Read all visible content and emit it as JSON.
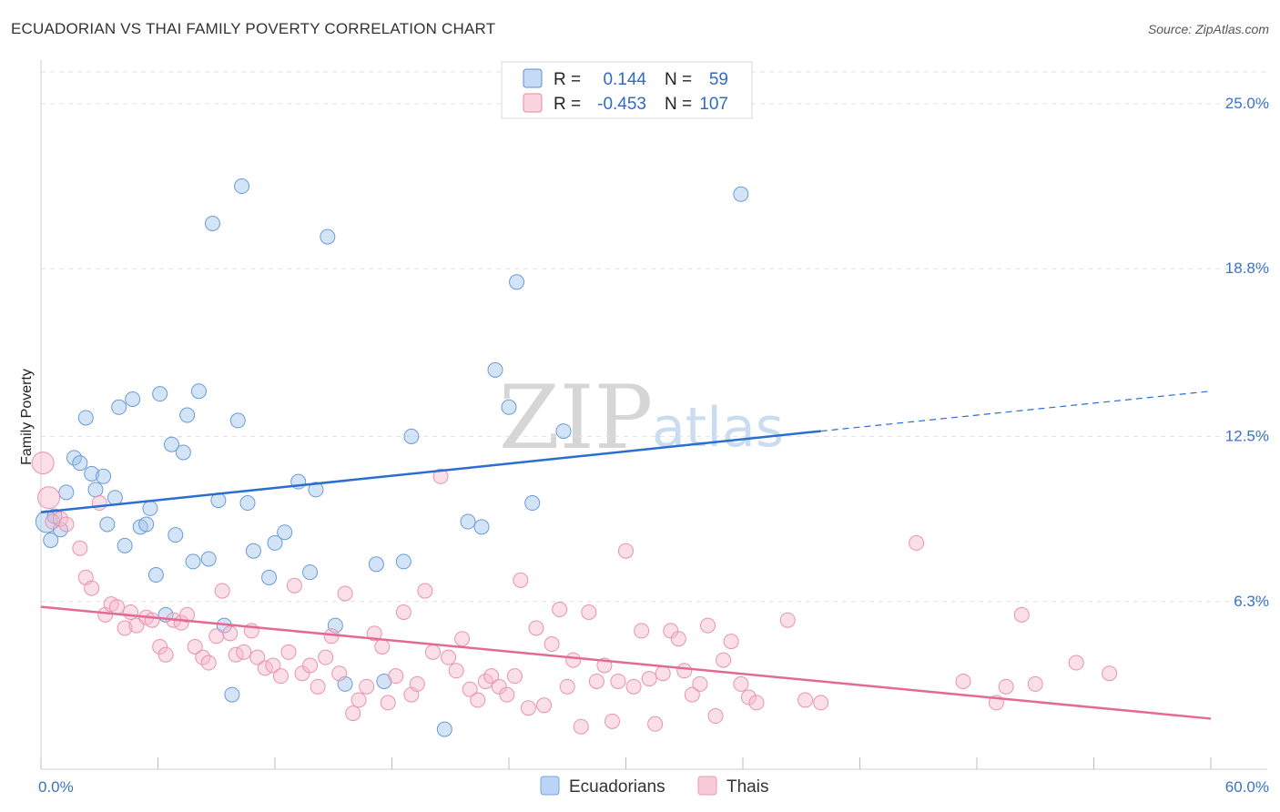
{
  "header": {
    "title": "ECUADORIAN VS THAI FAMILY POVERTY CORRELATION CHART",
    "source": "Source: ZipAtlas.com"
  },
  "watermark": {
    "part1": "ZIP",
    "part2": "atlas"
  },
  "legend_top": [
    {
      "r_label": "R =",
      "r_value": "0.144",
      "n_label": "N =",
      "n_value": "59",
      "color": "#9ec3ee",
      "stroke": "#5f8fd0"
    },
    {
      "r_label": "R =",
      "r_value": "-0.453",
      "n_label": "N =",
      "n_value": "107",
      "color": "#f6b9cb",
      "stroke": "#e58aa6"
    }
  ],
  "legend_bottom": [
    {
      "label": "Ecuadorians",
      "color": "#b9d4f4",
      "stroke": "#7ba4dc"
    },
    {
      "label": "Thais",
      "color": "#f8cbd8",
      "stroke": "#e99ab2"
    }
  ],
  "chart_data": {
    "type": "scatter",
    "title": "ECUADORIAN VS THAI FAMILY POVERTY CORRELATION CHART",
    "xlabel": "",
    "ylabel": "Family Poverty",
    "xlim": [
      0,
      60
    ],
    "ylim": [
      0,
      26.5
    ],
    "x_tick_labels": [
      "0.0%",
      "60.0%"
    ],
    "y_ticks": [
      6.3,
      12.5,
      18.8,
      25.0
    ],
    "y_tick_labels": [
      "6.3%",
      "12.5%",
      "18.8%",
      "25.0%"
    ],
    "grid": true,
    "series": [
      {
        "name": "Ecuadorians",
        "color": "#9ec3ee",
        "stroke": "#6b9ad8",
        "trend": {
          "x0": 0,
          "y0": 9.65,
          "x1": 40,
          "y1": 12.7,
          "dash_to": 60,
          "dash_y": 14.2,
          "color": "#2a6fce"
        },
        "points": [
          [
            0.3,
            9.3,
            2
          ],
          [
            0.5,
            8.6,
            1
          ],
          [
            0.7,
            9.5,
            1
          ],
          [
            1.0,
            9.0,
            1
          ],
          [
            1.3,
            10.4,
            1
          ],
          [
            1.7,
            11.7,
            1
          ],
          [
            2.0,
            11.5,
            1
          ],
          [
            2.3,
            13.2,
            1
          ],
          [
            2.6,
            11.1,
            1
          ],
          [
            2.8,
            10.5,
            1
          ],
          [
            3.2,
            11.0,
            1
          ],
          [
            3.4,
            9.2,
            1
          ],
          [
            3.8,
            10.2,
            1
          ],
          [
            4.0,
            13.6,
            1
          ],
          [
            4.3,
            8.4,
            1
          ],
          [
            4.7,
            13.9,
            1
          ],
          [
            5.1,
            9.1,
            1
          ],
          [
            5.4,
            9.2,
            1
          ],
          [
            5.6,
            9.8,
            1
          ],
          [
            5.9,
            7.3,
            1
          ],
          [
            6.1,
            14.1,
            1
          ],
          [
            6.4,
            5.8,
            1
          ],
          [
            6.7,
            12.2,
            1
          ],
          [
            6.9,
            8.8,
            1
          ],
          [
            7.3,
            11.9,
            1
          ],
          [
            7.5,
            13.3,
            1
          ],
          [
            7.8,
            7.8,
            1
          ],
          [
            8.1,
            14.2,
            1
          ],
          [
            8.6,
            7.9,
            1
          ],
          [
            8.8,
            20.5,
            1
          ],
          [
            9.1,
            10.1,
            1
          ],
          [
            9.4,
            5.4,
            1
          ],
          [
            9.8,
            2.8,
            1
          ],
          [
            10.1,
            13.1,
            1
          ],
          [
            10.3,
            21.9,
            1
          ],
          [
            10.6,
            10.0,
            1
          ],
          [
            10.9,
            8.2,
            1
          ],
          [
            11.7,
            7.2,
            1
          ],
          [
            12.0,
            8.5,
            1
          ],
          [
            12.5,
            8.9,
            1
          ],
          [
            13.2,
            10.8,
            1
          ],
          [
            13.8,
            7.4,
            1
          ],
          [
            14.1,
            10.5,
            1
          ],
          [
            14.7,
            20.0,
            1
          ],
          [
            15.1,
            5.4,
            1
          ],
          [
            15.6,
            3.2,
            1
          ],
          [
            17.2,
            7.7,
            1
          ],
          [
            17.6,
            3.3,
            1
          ],
          [
            18.6,
            7.8,
            1
          ],
          [
            19.0,
            12.5,
            1
          ],
          [
            20.7,
            1.5,
            1
          ],
          [
            21.9,
            9.3,
            1
          ],
          [
            22.6,
            9.1,
            1
          ],
          [
            23.3,
            15.0,
            1
          ],
          [
            24.0,
            13.6,
            1
          ],
          [
            24.4,
            18.3,
            1
          ],
          [
            25.2,
            10.0,
            1
          ],
          [
            26.8,
            12.7,
            1
          ],
          [
            35.9,
            21.6,
            1
          ]
        ]
      },
      {
        "name": "Thais",
        "color": "#f6b9cb",
        "stroke": "#e893ad",
        "trend": {
          "x0": 0,
          "y0": 6.1,
          "x1": 60,
          "y1": 1.9,
          "color": "#e46a96"
        },
        "points": [
          [
            0.1,
            11.5,
            2
          ],
          [
            0.4,
            10.2,
            2
          ],
          [
            0.6,
            9.3,
            1
          ],
          [
            1.0,
            9.4,
            1
          ],
          [
            1.3,
            9.2,
            1
          ],
          [
            2.0,
            8.3,
            1
          ],
          [
            2.3,
            7.2,
            1
          ],
          [
            2.6,
            6.8,
            1
          ],
          [
            3.0,
            10.0,
            1
          ],
          [
            3.3,
            5.8,
            1
          ],
          [
            3.6,
            6.2,
            1
          ],
          [
            3.9,
            6.1,
            1
          ],
          [
            4.3,
            5.3,
            1
          ],
          [
            4.6,
            5.9,
            1
          ],
          [
            4.9,
            5.4,
            1
          ],
          [
            5.4,
            5.7,
            1
          ],
          [
            5.7,
            5.6,
            1
          ],
          [
            6.1,
            4.6,
            1
          ],
          [
            6.4,
            4.3,
            1
          ],
          [
            6.8,
            5.6,
            1
          ],
          [
            7.2,
            5.5,
            1
          ],
          [
            7.5,
            5.8,
            1
          ],
          [
            7.9,
            4.6,
            1
          ],
          [
            8.3,
            4.2,
            1
          ],
          [
            8.6,
            4.0,
            1
          ],
          [
            9.0,
            5.0,
            1
          ],
          [
            9.3,
            6.7,
            1
          ],
          [
            9.7,
            5.1,
            1
          ],
          [
            10.0,
            4.3,
            1
          ],
          [
            10.4,
            4.4,
            1
          ],
          [
            10.8,
            5.2,
            1
          ],
          [
            11.1,
            4.2,
            1
          ],
          [
            11.5,
            3.8,
            1
          ],
          [
            11.9,
            3.9,
            1
          ],
          [
            12.3,
            3.5,
            1
          ],
          [
            12.7,
            4.4,
            1
          ],
          [
            13.0,
            6.9,
            1
          ],
          [
            13.4,
            3.6,
            1
          ],
          [
            13.8,
            3.9,
            1
          ],
          [
            14.2,
            3.1,
            1
          ],
          [
            14.6,
            4.2,
            1
          ],
          [
            14.9,
            5.0,
            1
          ],
          [
            15.3,
            3.6,
            1
          ],
          [
            15.6,
            6.6,
            1
          ],
          [
            16.0,
            2.1,
            1
          ],
          [
            16.3,
            2.6,
            1
          ],
          [
            16.7,
            3.1,
            1
          ],
          [
            17.1,
            5.1,
            1
          ],
          [
            17.5,
            4.6,
            1
          ],
          [
            17.8,
            2.5,
            1
          ],
          [
            18.2,
            3.5,
            1
          ],
          [
            18.6,
            5.9,
            1
          ],
          [
            19.0,
            2.8,
            1
          ],
          [
            19.3,
            3.2,
            1
          ],
          [
            19.7,
            6.7,
            1
          ],
          [
            20.1,
            4.4,
            1
          ],
          [
            20.5,
            11.0,
            1
          ],
          [
            20.9,
            4.2,
            1
          ],
          [
            21.3,
            3.7,
            1
          ],
          [
            21.6,
            4.9,
            1
          ],
          [
            22.0,
            3.0,
            1
          ],
          [
            22.4,
            2.6,
            1
          ],
          [
            22.8,
            3.3,
            1
          ],
          [
            23.1,
            3.5,
            1
          ],
          [
            23.5,
            3.1,
            1
          ],
          [
            23.9,
            2.8,
            1
          ],
          [
            24.3,
            3.5,
            1
          ],
          [
            24.6,
            7.1,
            1
          ],
          [
            25.0,
            2.3,
            1
          ],
          [
            25.4,
            5.3,
            1
          ],
          [
            25.8,
            2.4,
            1
          ],
          [
            26.2,
            4.7,
            1
          ],
          [
            26.6,
            6.0,
            1
          ],
          [
            27.0,
            3.1,
            1
          ],
          [
            27.3,
            4.1,
            1
          ],
          [
            27.7,
            1.6,
            1
          ],
          [
            28.1,
            5.9,
            1
          ],
          [
            28.5,
            3.3,
            1
          ],
          [
            28.9,
            3.9,
            1
          ],
          [
            29.3,
            1.8,
            1
          ],
          [
            29.6,
            3.3,
            1
          ],
          [
            30.0,
            8.2,
            1
          ],
          [
            30.4,
            3.1,
            1
          ],
          [
            30.8,
            5.2,
            1
          ],
          [
            31.2,
            3.4,
            1
          ],
          [
            31.5,
            1.7,
            1
          ],
          [
            31.9,
            3.6,
            1
          ],
          [
            32.3,
            5.2,
            1
          ],
          [
            32.7,
            4.9,
            1
          ],
          [
            33.0,
            3.7,
            1
          ],
          [
            33.4,
            2.8,
            1
          ],
          [
            33.8,
            3.2,
            1
          ],
          [
            34.2,
            5.4,
            1
          ],
          [
            34.6,
            2.0,
            1
          ],
          [
            35.0,
            4.1,
            1
          ],
          [
            35.4,
            4.8,
            1
          ],
          [
            35.9,
            3.2,
            1
          ],
          [
            36.3,
            2.7,
            1
          ],
          [
            36.7,
            2.5,
            1
          ],
          [
            38.3,
            5.6,
            1
          ],
          [
            39.2,
            2.6,
            1
          ],
          [
            40.0,
            2.5,
            1
          ],
          [
            44.9,
            8.5,
            1
          ],
          [
            47.3,
            3.3,
            1
          ],
          [
            49.0,
            2.5,
            1
          ],
          [
            49.5,
            3.1,
            1
          ],
          [
            50.3,
            5.8,
            1
          ],
          [
            51.0,
            3.2,
            1
          ],
          [
            53.1,
            4.0,
            1
          ],
          [
            54.8,
            3.6,
            1
          ]
        ]
      }
    ]
  }
}
